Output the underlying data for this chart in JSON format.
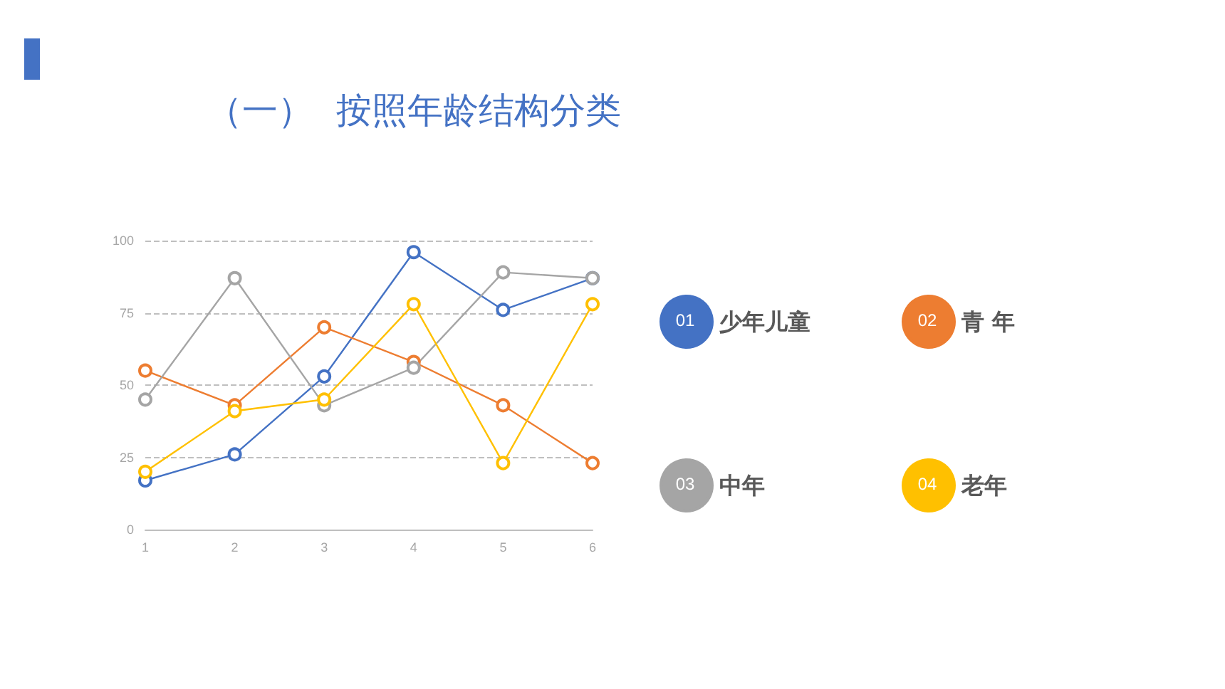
{
  "chart_data": {
    "type": "line",
    "title": "（一）  按照年龄结构分类",
    "categories": [
      "1",
      "2",
      "3",
      "4",
      "5",
      "6"
    ],
    "series": [
      {
        "name": "少年儿童",
        "color": "#4472c4",
        "values": [
          17,
          26,
          53,
          96,
          76,
          87
        ]
      },
      {
        "name": "青 年",
        "color": "#ed7d31",
        "values": [
          55,
          43,
          70,
          58,
          43,
          23
        ]
      },
      {
        "name": "中年",
        "color": "#a5a5a5",
        "values": [
          45,
          87,
          43,
          56,
          89,
          87
        ]
      },
      {
        "name": "老年",
        "color": "#ffc000",
        "values": [
          20,
          41,
          45,
          78,
          23,
          78
        ]
      }
    ],
    "annotations": [
      "01",
      "02",
      "03",
      "04"
    ],
    "ylim": [
      0,
      100
    ],
    "yticks": [
      0,
      25,
      50,
      75,
      100
    ],
    "grid": "y",
    "legend": "right",
    "marker": "circle",
    "line_style": "solid"
  }
}
